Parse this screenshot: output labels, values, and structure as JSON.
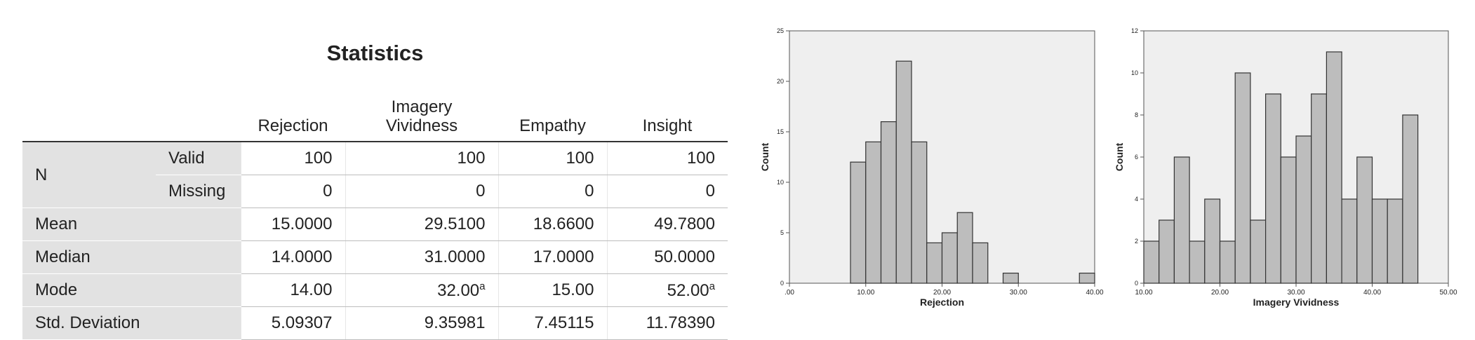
{
  "table": {
    "title": "Statistics",
    "columns": [
      "Rejection",
      "Imagery Vividness",
      "Empathy",
      "Insight"
    ],
    "rows": [
      {
        "label": "N",
        "sublabel": "Valid",
        "cells": [
          "100",
          "100",
          "100",
          "100"
        ]
      },
      {
        "sublabel": "Missing",
        "cells": [
          "0",
          "0",
          "0",
          "0"
        ]
      },
      {
        "label": "Mean",
        "cells": [
          "15.0000",
          "29.5100",
          "18.6600",
          "49.7800"
        ]
      },
      {
        "label": "Median",
        "cells": [
          "14.0000",
          "31.0000",
          "17.0000",
          "50.0000"
        ]
      },
      {
        "label": "Mode",
        "cells": [
          "14.00",
          {
            "text": "32.00",
            "note": "a"
          },
          "15.00",
          {
            "text": "52.00",
            "note": "a"
          }
        ]
      },
      {
        "label": "Std. Deviation",
        "cells": [
          "5.09307",
          "9.35981",
          "7.45115",
          "11.78390"
        ]
      }
    ]
  },
  "chart_data": [
    {
      "type": "histogram",
      "x_label": "Rejection",
      "y_label": "Count",
      "color": "#bdbdbd",
      "bins": [
        8,
        10,
        12,
        14,
        16,
        18,
        20,
        22,
        24,
        26,
        28,
        30,
        32,
        34,
        36,
        38,
        40
      ],
      "values": [
        12,
        14,
        16,
        22,
        14,
        4,
        5,
        7,
        4,
        0,
        1,
        0,
        0,
        0,
        0,
        1
      ],
      "xlim": [
        0,
        40
      ],
      "xticks": [
        {
          "value": 0,
          "label": ".00"
        },
        {
          "value": 10,
          "label": "10.00"
        },
        {
          "value": 20,
          "label": "20.00"
        },
        {
          "value": 30,
          "label": "30.00"
        },
        {
          "value": 40,
          "label": "40.00"
        }
      ],
      "ylim": [
        0,
        25
      ],
      "yticks": [
        0,
        5,
        10,
        15,
        20,
        25
      ]
    },
    {
      "type": "histogram",
      "x_label": "Imagery Vividness",
      "y_label": "Count",
      "color": "#bdbdbd",
      "bins": [
        10,
        12,
        14,
        16,
        18,
        20,
        22,
        24,
        26,
        28,
        30,
        32,
        34,
        36,
        38,
        40,
        42,
        44,
        46
      ],
      "values": [
        2,
        3,
        6,
        2,
        4,
        2,
        10,
        3,
        9,
        6,
        7,
        9,
        11,
        4,
        6,
        4,
        4,
        8
      ],
      "xlim": [
        10,
        50
      ],
      "xticks": [
        {
          "value": 10,
          "label": "10.00"
        },
        {
          "value": 20,
          "label": "20.00"
        },
        {
          "value": 30,
          "label": "30.00"
        },
        {
          "value": 40,
          "label": "40.00"
        },
        {
          "value": 50,
          "label": "50.00"
        }
      ],
      "ylim": [
        0,
        12
      ],
      "yticks": [
        0,
        2,
        4,
        6,
        8,
        10,
        12
      ]
    }
  ]
}
